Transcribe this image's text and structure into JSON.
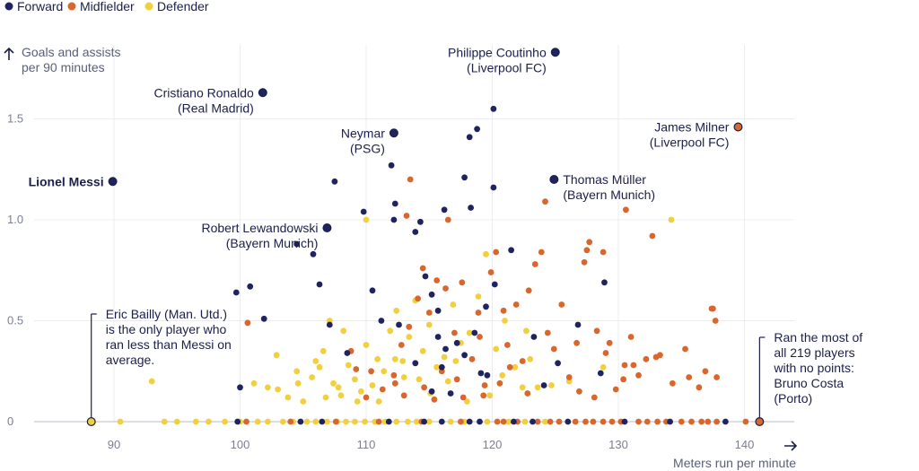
{
  "colors": {
    "forward": "#1f2461",
    "midfielder": "#d9662c",
    "defender": "#f2cf3e"
  },
  "chart_data": {
    "type": "scatter",
    "xlabel": "Meters run per minute",
    "ylabel_line1": "Goals and assists",
    "ylabel_line2": "per 90 minutes",
    "xlim": [
      85,
      141.5
    ],
    "ylim": [
      0,
      1.85
    ],
    "x_ticks": [
      90,
      100,
      110,
      120,
      130,
      140
    ],
    "y_ticks": [
      0,
      0.5,
      1.0,
      1.5
    ],
    "y_tick_labels": [
      "0",
      "0.5",
      "1.0",
      "1.5"
    ],
    "legend": [
      {
        "key": "forward",
        "label": "Forward"
      },
      {
        "key": "midfielder",
        "label": "Midfielder"
      },
      {
        "key": "defender",
        "label": "Defender"
      }
    ],
    "series": [
      {
        "name": "Forward",
        "key": "forward",
        "points": [
          [
            89.9,
            1.19
          ],
          [
            101.8,
            1.63
          ],
          [
            112.2,
            1.43
          ],
          [
            106.9,
            0.96
          ],
          [
            124.9,
            1.2
          ],
          [
            125,
            1.83
          ],
          [
            100.0,
            0.17
          ],
          [
            99.7,
            0.64
          ],
          [
            100.8,
            0.67
          ],
          [
            101.9,
            0.51
          ],
          [
            104.5,
            0.88
          ],
          [
            105.8,
            0.83
          ],
          [
            106.3,
            0.68
          ],
          [
            107.5,
            1.19
          ],
          [
            109.8,
            1.04
          ],
          [
            110.5,
            0.65
          ],
          [
            111.2,
            0.5
          ],
          [
            112.6,
            0.48
          ],
          [
            113.9,
            0.94
          ],
          [
            114.3,
            0.99
          ],
          [
            114.7,
            0.72
          ],
          [
            115.2,
            0.63
          ],
          [
            115.7,
            0.55
          ],
          [
            116.2,
            1.05
          ],
          [
            117.2,
            0.39
          ],
          [
            117.8,
            1.21
          ],
          [
            118.3,
            1.06
          ],
          [
            118.2,
            1.41
          ],
          [
            118.8,
            1.45
          ],
          [
            119.5,
            0.57
          ],
          [
            120.1,
            1.16
          ],
          [
            120.2,
            0.68
          ],
          [
            120.1,
            1.55
          ],
          [
            121.5,
            0.85
          ],
          [
            112.3,
            1.08
          ],
          [
            112.0,
            1.27
          ],
          [
            112.2,
            1.0
          ],
          [
            116.0,
            0.27
          ],
          [
            116.3,
            0.36
          ],
          [
            117.8,
            0.33
          ],
          [
            113.9,
            0.29
          ],
          [
            115.7,
            0.42
          ],
          [
            118.6,
            0.44
          ],
          [
            123.3,
            0.42
          ],
          [
            124.1,
            0.18
          ],
          [
            125.2,
            0.29
          ],
          [
            126.8,
            0.48
          ],
          [
            128.6,
            0.24
          ],
          [
            128.9,
            0.69
          ],
          [
            116.7,
            0.14
          ],
          [
            119.1,
            0.24
          ],
          [
            115.2,
            0.15
          ],
          [
            108.5,
            0.34
          ],
          [
            107.1,
            0.48
          ],
          [
            119.6,
            0.23
          ],
          [
            134.1,
            0.0
          ],
          [
            138.5,
            0.0
          ],
          [
            114.6,
            0.0
          ],
          [
            116.0,
            0.0
          ],
          [
            118.2,
            0.0
          ],
          [
            121.7,
            0.0
          ],
          [
            123.2,
            0.0
          ],
          [
            111.8,
            0.0
          ],
          [
            106.5,
            0.0
          ],
          [
            104.8,
            0.0
          ],
          [
            99.8,
            0.0
          ],
          [
            130.5,
            0.0
          ],
          [
            126.0,
            0.0
          ],
          [
            119.0,
            0.0
          ]
        ]
      },
      {
        "name": "Midfielder",
        "key": "midfielder",
        "points": [
          [
            139.5,
            1.46
          ],
          [
            141.2,
            0.0
          ],
          [
            113.2,
            1.02
          ],
          [
            116.5,
            1.0
          ],
          [
            124.2,
            1.09
          ],
          [
            113.5,
            1.2
          ],
          [
            100.6,
            0.49
          ],
          [
            108.8,
            0.35
          ],
          [
            109.2,
            0.26
          ],
          [
            110.4,
            0.25
          ],
          [
            111.3,
            0.16
          ],
          [
            112.2,
            0.23
          ],
          [
            112.8,
            0.38
          ],
          [
            113.4,
            0.47
          ],
          [
            114.1,
            0.61
          ],
          [
            114.5,
            0.76
          ],
          [
            115.0,
            0.54
          ],
          [
            115.6,
            0.7
          ],
          [
            116.3,
            0.66
          ],
          [
            117.0,
            0.44
          ],
          [
            117.6,
            0.69
          ],
          [
            118.4,
            0.31
          ],
          [
            118.9,
            0.54
          ],
          [
            119.4,
            0.18
          ],
          [
            119.9,
            0.74
          ],
          [
            120.3,
            0.84
          ],
          [
            120.9,
            0.55
          ],
          [
            121.4,
            0.27
          ],
          [
            121.9,
            0.58
          ],
          [
            122.4,
            0.3
          ],
          [
            122.9,
            0.65
          ],
          [
            123.4,
            0.78
          ],
          [
            123.9,
            0.84
          ],
          [
            124.4,
            0.44
          ],
          [
            124.9,
            0.36
          ],
          [
            125.5,
            0.58
          ],
          [
            126.1,
            0.22
          ],
          [
            126.7,
            0.39
          ],
          [
            127.3,
            0.79
          ],
          [
            127.7,
            0.89
          ],
          [
            128.3,
            0.45
          ],
          [
            128.8,
            0.84
          ],
          [
            129.3,
            0.39
          ],
          [
            129.8,
            0.16
          ],
          [
            130.5,
            0.28
          ],
          [
            131.0,
            0.42
          ],
          [
            131.6,
            0.23
          ],
          [
            132.2,
            0.31
          ],
          [
            132.7,
            0.92
          ],
          [
            133.3,
            0.33
          ],
          [
            134.3,
            0.19
          ],
          [
            135.3,
            0.36
          ],
          [
            136.4,
            0.17
          ],
          [
            136.9,
            0.25
          ],
          [
            137.4,
            0.56
          ],
          [
            137.7,
            0.5
          ],
          [
            137.8,
            0.22
          ],
          [
            130.6,
            1.05
          ],
          [
            127.5,
            0.85
          ],
          [
            113.0,
            0.13
          ],
          [
            114.6,
            0.17
          ],
          [
            116.0,
            0.25
          ],
          [
            117.2,
            0.21
          ],
          [
            119.0,
            0.42
          ],
          [
            120.6,
            0.19
          ],
          [
            122.8,
            0.14
          ],
          [
            126.9,
            0.15
          ],
          [
            129.0,
            0.34
          ],
          [
            131.2,
            0.28
          ],
          [
            133.0,
            0.32
          ],
          [
            135.6,
            0.22
          ],
          [
            128.1,
            0.12
          ],
          [
            130.4,
            0.21
          ],
          [
            121.2,
            0.38
          ],
          [
            119.3,
            0.13
          ],
          [
            115.4,
            0.11
          ],
          [
            117.7,
            0.12
          ],
          [
            112.3,
            0.19
          ],
          [
            110.0,
            0.12
          ],
          [
            137.5,
            0.56
          ],
          [
            100.5,
            0.0
          ],
          [
            104.0,
            0.0
          ],
          [
            107.6,
            0.0
          ],
          [
            111.0,
            0.0
          ],
          [
            114.4,
            0.0
          ],
          [
            117.5,
            0.0
          ],
          [
            120.4,
            0.0
          ],
          [
            123.6,
            0.0
          ],
          [
            125.3,
            0.0
          ],
          [
            126.6,
            0.0
          ],
          [
            127.4,
            0.0
          ],
          [
            128.0,
            0.0
          ],
          [
            128.8,
            0.0
          ],
          [
            129.5,
            0.0
          ],
          [
            130.2,
            0.0
          ],
          [
            131.6,
            0.0
          ],
          [
            132.3,
            0.0
          ],
          [
            133.1,
            0.0
          ],
          [
            133.8,
            0.0
          ],
          [
            135.0,
            0.0
          ],
          [
            135.8,
            0.0
          ],
          [
            136.6,
            0.0
          ],
          [
            137.1,
            0.0
          ],
          [
            137.8,
            0.0
          ],
          [
            140.1,
            0.0
          ],
          [
            120.9,
            0.0
          ],
          [
            122.0,
            0.0
          ],
          [
            124.6,
            0.0
          ]
        ]
      },
      {
        "name": "Defender",
        "key": "defender",
        "points": [
          [
            88.2,
            0.0
          ],
          [
            90.5,
            0.0
          ],
          [
            93.0,
            0.2
          ],
          [
            94.0,
            0.0
          ],
          [
            95.0,
            0.0
          ],
          [
            96.5,
            0.0
          ],
          [
            97.5,
            0.0
          ],
          [
            98.8,
            0.0
          ],
          [
            100.0,
            0.0
          ],
          [
            101.4,
            0.0
          ],
          [
            102.2,
            0.0
          ],
          [
            103.4,
            0.0
          ],
          [
            104.2,
            0.0
          ],
          [
            105.3,
            0.0
          ],
          [
            106.0,
            0.0
          ],
          [
            106.9,
            0.0
          ],
          [
            107.7,
            0.0
          ],
          [
            108.4,
            0.0
          ],
          [
            109.1,
            0.0
          ],
          [
            109.9,
            0.0
          ],
          [
            110.7,
            0.0
          ],
          [
            111.5,
            0.0
          ],
          [
            112.4,
            0.0
          ],
          [
            113.3,
            0.0
          ],
          [
            114.0,
            0.0
          ],
          [
            115.0,
            0.0
          ],
          [
            116.7,
            0.0
          ],
          [
            117.8,
            0.0
          ],
          [
            119.6,
            0.0
          ],
          [
            121.3,
            0.0
          ],
          [
            122.6,
            0.0
          ],
          [
            124.2,
            0.0
          ],
          [
            101.1,
            0.19
          ],
          [
            102.2,
            0.17
          ],
          [
            102.9,
            0.33
          ],
          [
            103.8,
            0.12
          ],
          [
            104.6,
            0.19
          ],
          [
            105.7,
            0.22
          ],
          [
            106.0,
            0.3
          ],
          [
            106.3,
            0.27
          ],
          [
            106.6,
            0.35
          ],
          [
            107.1,
            0.5
          ],
          [
            107.4,
            0.19
          ],
          [
            107.8,
            0.17
          ],
          [
            108.2,
            0.45
          ],
          [
            108.6,
            0.28
          ],
          [
            109.1,
            0.21
          ],
          [
            109.6,
            0.15
          ],
          [
            110.0,
            0.38
          ],
          [
            110.5,
            0.18
          ],
          [
            110.9,
            0.31
          ],
          [
            111.4,
            0.25
          ],
          [
            111.9,
            0.45
          ],
          [
            112.4,
            0.55
          ],
          [
            112.9,
            0.3
          ],
          [
            113.4,
            0.42
          ],
          [
            113.9,
            0.6
          ],
          [
            114.5,
            0.35
          ],
          [
            115.0,
            0.48
          ],
          [
            115.6,
            0.27
          ],
          [
            116.2,
            0.32
          ],
          [
            116.9,
            0.58
          ],
          [
            117.5,
            0.39
          ],
          [
            118.2,
            0.44
          ],
          [
            118.9,
            0.62
          ],
          [
            119.5,
            0.83
          ],
          [
            120.3,
            0.36
          ],
          [
            121.0,
            0.5
          ],
          [
            121.8,
            0.27
          ],
          [
            122.7,
            0.45
          ],
          [
            123.6,
            0.17
          ],
          [
            124.7,
            0.18
          ],
          [
            126.1,
            0.2
          ],
          [
            128.8,
            0.27
          ],
          [
            134.2,
            1.0
          ],
          [
            110.0,
            1.0
          ],
          [
            112.3,
            0.31
          ],
          [
            113.0,
            0.22
          ],
          [
            115.1,
            0.14
          ],
          [
            116.5,
            0.2
          ],
          [
            118.0,
            0.1
          ],
          [
            119.8,
            0.13
          ],
          [
            120.8,
            0.23
          ],
          [
            122.4,
            0.17
          ],
          [
            123.0,
            0.31
          ],
          [
            109.3,
            0.1
          ],
          [
            108.0,
            0.13
          ],
          [
            105.0,
            0.1
          ],
          [
            103.0,
            0.16
          ],
          [
            104.5,
            0.25
          ],
          [
            106.8,
            0.12
          ],
          [
            111.0,
            0.1
          ],
          [
            117.1,
            0.3
          ],
          [
            114.2,
            0.21
          ]
        ]
      }
    ],
    "annotations": [
      {
        "name": "annotation-lionel-messi",
        "x": 89.9,
        "y": 1.19,
        "lines": [
          "Lionel Messi"
        ],
        "anchor": "end",
        "bold": true,
        "lines_key": "messi"
      },
      {
        "name": "annotation-cristiano-ronaldo",
        "x": 101.8,
        "y": 1.63,
        "lines": [
          "Cristiano Ronaldo",
          "(Real Madrid)"
        ],
        "anchor": "end"
      },
      {
        "name": "annotation-neymar",
        "x": 112.2,
        "y": 1.43,
        "lines": [
          "Neymar",
          "(PSG)"
        ],
        "anchor": "end"
      },
      {
        "name": "annotation-robert-lewandowski",
        "x": 106.9,
        "y": 0.96,
        "lines": [
          "Robert Lewandowski",
          "(Bayern Munich)"
        ],
        "anchor": "end"
      },
      {
        "name": "annotation-philippe-coutinho",
        "x": 125.0,
        "y": 1.83,
        "lines": [
          "Philippe Coutinho",
          "(Liverpool FC)"
        ],
        "anchor": "end"
      },
      {
        "name": "annotation-thomas-muller",
        "x": 124.9,
        "y": 1.2,
        "lines": [
          "Thomas Müller",
          "(Bayern Munich)"
        ],
        "anchor": "start"
      },
      {
        "name": "annotation-james-milner",
        "x": 139.5,
        "y": 1.46,
        "lines": [
          "James Milner",
          "(Liverpool FC)"
        ],
        "anchor": "end"
      },
      {
        "name": "annotation-eric-bailly",
        "x": 88.2,
        "y": 0.0,
        "lines": [
          "Eric Bailly (Man. Utd.)",
          "is the only player who",
          "ran less than Messi on",
          "average."
        ],
        "anchor": "callout-right"
      },
      {
        "name": "annotation-bruno-costa",
        "x": 141.2,
        "y": 0.0,
        "lines": [
          "Ran the most of",
          "all 219 players",
          "with no points:",
          "Bruno Costa",
          "(Porto)"
        ],
        "anchor": "callout-right"
      }
    ]
  }
}
